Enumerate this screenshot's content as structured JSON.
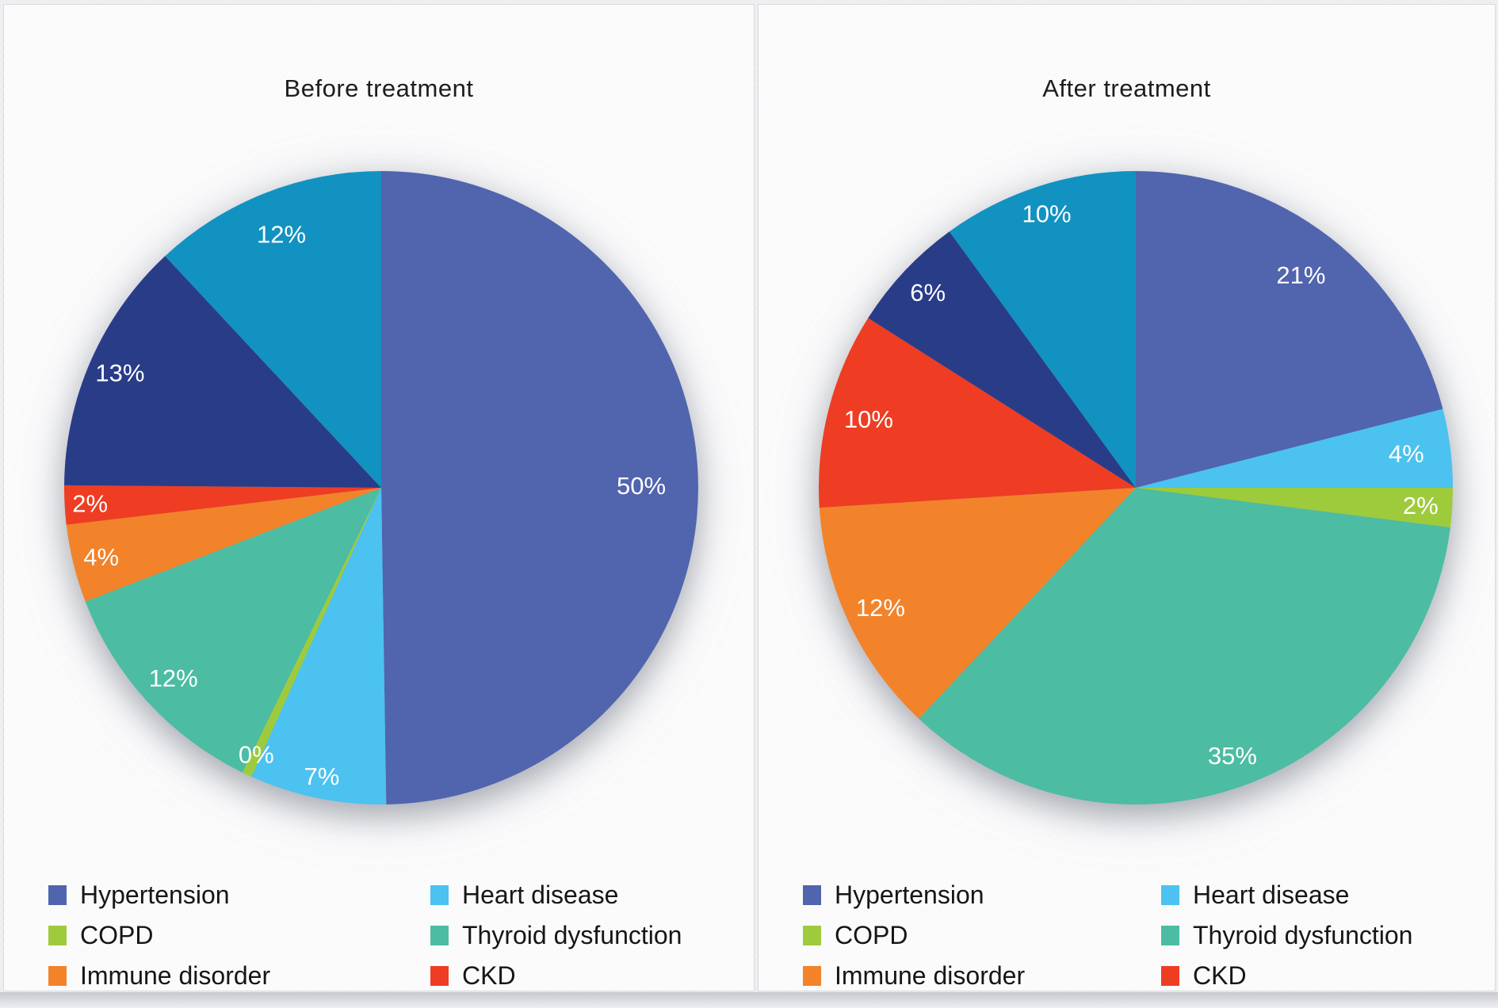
{
  "chart_data": [
    {
      "type": "pie",
      "title": "Before treatment",
      "slices": [
        {
          "label": "Hypertension",
          "display": "50%",
          "value": 50,
          "color": "#5164AE",
          "in_legend": true
        },
        {
          "label": "Heart disease",
          "display": "7%",
          "value": 7,
          "color": "#4BC2F0",
          "in_legend": true
        },
        {
          "label": "COPD",
          "display": "0%",
          "value": 0.5,
          "color": "#9ECB3C",
          "in_legend": true
        },
        {
          "label": "Thyroid dysfunction",
          "display": "12%",
          "value": 12,
          "color": "#4CBCA2",
          "in_legend": true
        },
        {
          "label": "Immune disorder",
          "display": "4%",
          "value": 4,
          "color": "#F2832A",
          "in_legend": true
        },
        {
          "label": "CKD",
          "display": "2%",
          "value": 2,
          "color": "#EE3D23",
          "in_legend": true
        },
        {
          "label": "",
          "display": "13%",
          "value": 13,
          "color": "#293C88",
          "in_legend": false
        },
        {
          "label": "",
          "display": "12%",
          "value": 12,
          "color": "#1292C1",
          "in_legend": false
        }
      ],
      "legend": [
        {
          "label": "Hypertension",
          "color": "#5164AE"
        },
        {
          "label": "Heart disease",
          "color": "#4BC2F0"
        },
        {
          "label": "COPD",
          "color": "#9ECB3C"
        },
        {
          "label": "Thyroid dysfunction",
          "color": "#4CBCA2"
        },
        {
          "label": "Immune disorder",
          "color": "#F2832A"
        },
        {
          "label": "CKD",
          "color": "#EE3D23"
        }
      ]
    },
    {
      "type": "pie",
      "title": "After treatment",
      "slices": [
        {
          "label": "Hypertension",
          "display": "21%",
          "value": 21,
          "color": "#5164AE",
          "in_legend": true
        },
        {
          "label": "Heart disease",
          "display": "4%",
          "value": 4,
          "color": "#4BC2F0",
          "in_legend": true
        },
        {
          "label": "COPD",
          "display": "2%",
          "value": 2,
          "color": "#9ECB3C",
          "in_legend": true
        },
        {
          "label": "Thyroid dysfunction",
          "display": "35%",
          "value": 35,
          "color": "#4CBCA2",
          "in_legend": true
        },
        {
          "label": "Immune disorder",
          "display": "12%",
          "value": 12,
          "color": "#F2832A",
          "in_legend": true
        },
        {
          "label": "CKD",
          "display": "10%",
          "value": 10,
          "color": "#EE3D23",
          "in_legend": true
        },
        {
          "label": "",
          "display": "6%",
          "value": 6,
          "color": "#293C88",
          "in_legend": false
        },
        {
          "label": "",
          "display": "10%",
          "value": 10,
          "color": "#1292C1",
          "in_legend": false
        }
      ],
      "legend": [
        {
          "label": "Hypertension",
          "color": "#5164AE"
        },
        {
          "label": "Heart disease",
          "color": "#4BC2F0"
        },
        {
          "label": "COPD",
          "color": "#9ECB3C"
        },
        {
          "label": "Thyroid dysfunction",
          "color": "#4CBCA2"
        },
        {
          "label": "Immune disorder",
          "color": "#F2832A"
        },
        {
          "label": "CKD",
          "color": "#EE3D23"
        }
      ]
    }
  ]
}
